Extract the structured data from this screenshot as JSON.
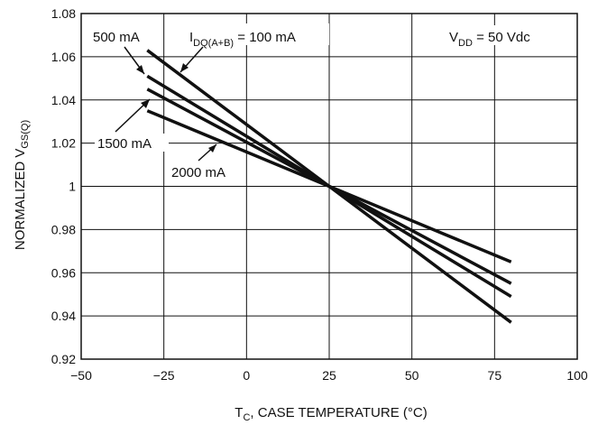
{
  "chart_data": {
    "type": "line",
    "xlim": [
      -50,
      100
    ],
    "ylim": [
      0.92,
      1.08
    ],
    "x_ticks": [
      -50,
      -25,
      0,
      25,
      50,
      75,
      100
    ],
    "x_tick_labels": [
      "−50",
      "−25",
      "0",
      "25",
      "50",
      "75",
      "100"
    ],
    "y_ticks": [
      0.92,
      0.94,
      0.96,
      0.98,
      1.0,
      1.02,
      1.04,
      1.06,
      1.08
    ],
    "y_tick_labels": [
      "0.92",
      "0.94",
      "0.96",
      "0.98",
      "1",
      "1.02",
      "1.04",
      "1.06",
      "1.08"
    ],
    "grid": true,
    "xlabel": {
      "main": "T",
      "sub": "C",
      "rest": ", CASE TEMPERATURE (°C)"
    },
    "ylabel": {
      "main": "NORMALIZED V",
      "sub": "GS(Q)"
    },
    "series": [
      {
        "name": "100 mA",
        "x": [
          -30,
          25,
          80
        ],
        "y": [
          1.063,
          1.0,
          0.937
        ]
      },
      {
        "name": "500 mA",
        "x": [
          -30,
          25,
          80
        ],
        "y": [
          1.051,
          1.0,
          0.949
        ]
      },
      {
        "name": "1500 mA",
        "x": [
          -30,
          25,
          80
        ],
        "y": [
          1.045,
          1.0,
          0.955
        ]
      },
      {
        "name": "2000 mA",
        "x": [
          -30,
          25,
          80
        ],
        "y": [
          1.035,
          1.0,
          0.965
        ]
      }
    ],
    "annotations": {
      "idq": {
        "main": "I",
        "sub": "DQ(A+B)",
        "rest": " = 100 mA"
      },
      "vdd": {
        "main": "V",
        "sub": "DD",
        "rest": " = 50 Vdc"
      },
      "label_500": "500 mA",
      "label_1500": "1500 mA",
      "label_2000": "2000 mA"
    }
  }
}
